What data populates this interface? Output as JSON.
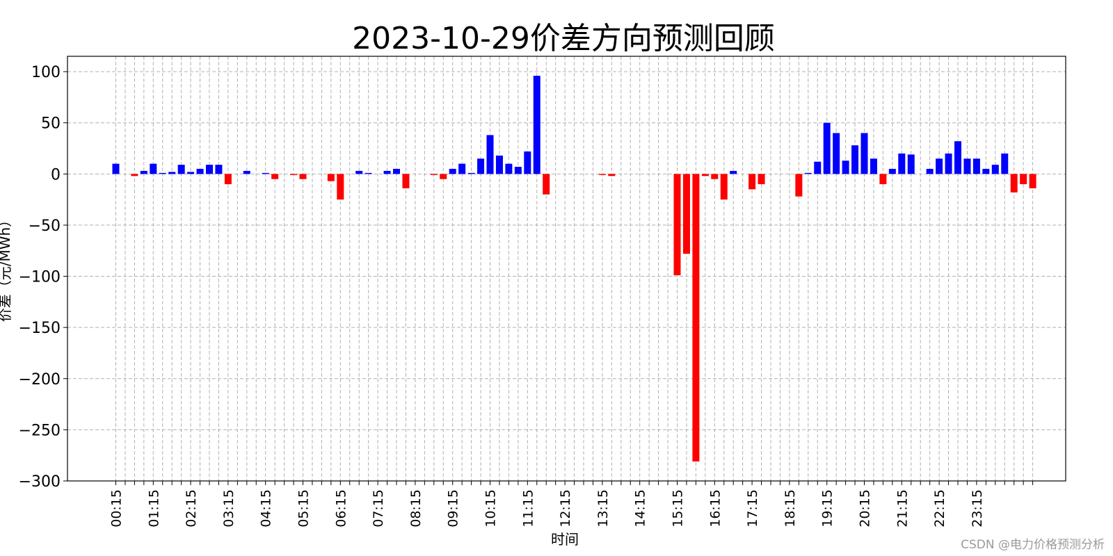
{
  "watermark": "CSDN @电力价格预测分析",
  "chart_data": {
    "type": "bar",
    "title": "2023-10-29价差方向预测回顾",
    "xlabel": "时间",
    "ylabel": "价差（元/MWh）",
    "ylim": [
      -300,
      115
    ],
    "yticks": [
      100,
      50,
      0,
      -50,
      -100,
      -150,
      -200,
      -250,
      -300
    ],
    "grid": true,
    "x_tick_labels": [
      "00:15",
      "01:15",
      "02:15",
      "03:15",
      "04:15",
      "05:15",
      "06:15",
      "07:15",
      "08:15",
      "09:15",
      "10:15",
      "11:15",
      "12:15",
      "13:15",
      "14:15",
      "15:15",
      "16:15",
      "17:15",
      "18:15",
      "19:15",
      "20:15",
      "21:15",
      "22:15",
      "23:15"
    ],
    "colors": {
      "positive": "#0000ff",
      "negative": "#ff0000"
    },
    "values": [
      10,
      0,
      -2,
      3,
      10,
      1,
      2,
      9,
      2,
      5,
      9,
      9,
      -10,
      0,
      3,
      0,
      1,
      -5,
      0,
      -1,
      -5,
      0,
      0,
      -7,
      -25,
      0,
      3,
      1,
      0,
      3,
      5,
      -14,
      0,
      0,
      -1,
      -5,
      5,
      10,
      1,
      15,
      38,
      18,
      10,
      7,
      22,
      96,
      -20,
      0,
      0,
      0,
      0,
      0,
      -1,
      -2,
      0,
      0,
      0,
      0,
      0,
      0,
      -99,
      -78,
      -281,
      -2,
      -5,
      -25,
      3,
      0,
      -15,
      -10,
      0,
      0,
      0,
      -22,
      1,
      12,
      50,
      40,
      13,
      28,
      40,
      15,
      -10,
      5,
      20,
      19,
      0,
      5,
      15,
      20,
      32,
      15,
      15,
      5,
      9,
      20,
      -18,
      -10,
      -14
    ]
  }
}
